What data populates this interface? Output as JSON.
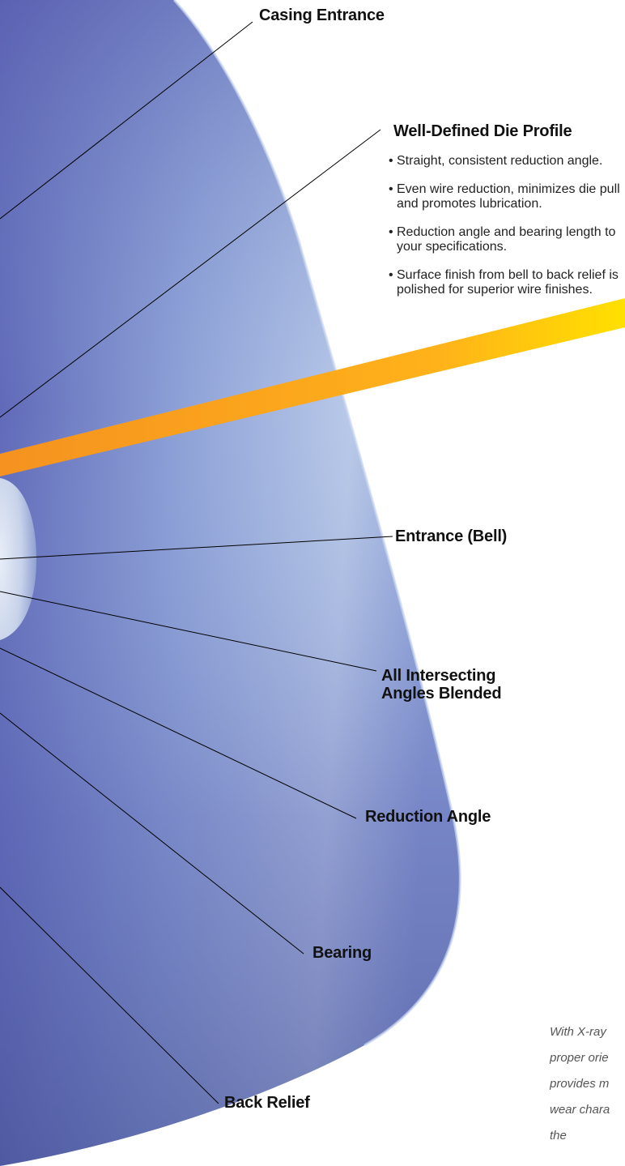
{
  "labels": {
    "casing_entrance": "Casing Entrance",
    "die_profile_title": "Well-Defined Die Profile",
    "entrance_bell": "Entrance (Bell)",
    "intersecting_line1": "All Intersecting",
    "intersecting_line2": "Angles Blended",
    "reduction_angle": "Reduction Angle",
    "bearing": "Bearing",
    "back_relief": "Back Relief"
  },
  "die_profile_bullets": [
    "Straight, consistent reduction angle.",
    "Even wire reduction, minimizes die pull and promotes lubrication.",
    "Reduction angle and bearing length to your specifications.",
    "Surface finish from bell to back relief is polished for superior wire finishes."
  ],
  "caption_lines": [
    "With X-ray",
    "proper orie",
    "provides m",
    "wear chara",
    "the"
  ],
  "colors": {
    "die_blue": "#6f7fc6",
    "die_dark": "#3f4aa0",
    "wire_orange": "#f39a1e",
    "wire_yellow": "#ffd400",
    "leader_line": "#000000"
  }
}
